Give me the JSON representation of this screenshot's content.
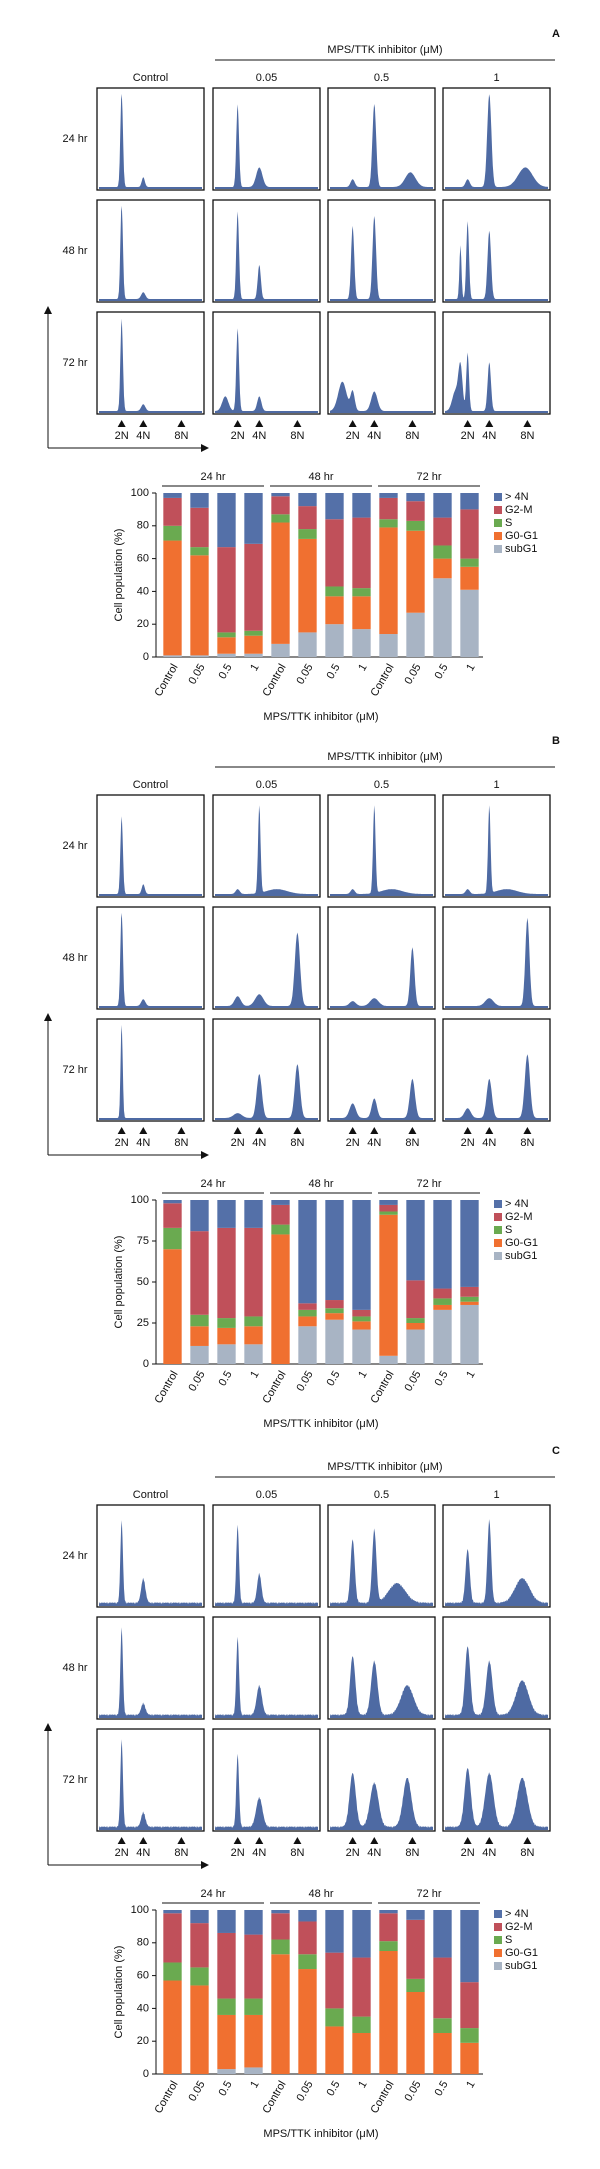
{
  "panels": [
    {
      "label": "A",
      "header": "MPS/TTK inhibitor (μM)",
      "columns": [
        "Control",
        "0.05",
        "0.5",
        "1"
      ],
      "rows": [
        "24 hr",
        "48 hr",
        "72 hr"
      ],
      "markers": [
        "2N",
        "4N",
        "8N"
      ]
    },
    {
      "label": "B",
      "header": "MPS/TTK inhibitor (μM)",
      "columns": [
        "Control",
        "0.05",
        "0.5",
        "1"
      ],
      "rows": [
        "24 hr",
        "48 hr",
        "72 hr"
      ],
      "markers": [
        "2N",
        "4N",
        "8N"
      ]
    },
    {
      "label": "C",
      "header": "MPS/TTK inhibitor (μM)",
      "columns": [
        "Control",
        "0.05",
        "0.5",
        "1"
      ],
      "rows": [
        "24 hr",
        "48 hr",
        "72 hr"
      ],
      "markers": [
        "2N",
        "4N",
        "8N"
      ]
    }
  ],
  "chart_data": [
    {
      "type": "stacked_bar",
      "groups": [
        "24 hr",
        "48 hr",
        "72 hr"
      ],
      "categories": [
        "Control",
        "0.05",
        "0.5",
        "1",
        "Control",
        "0.05",
        "0.5",
        "1",
        "Control",
        "0.05",
        "0.5",
        "1"
      ],
      "series": [
        {
          "name": "> 4N",
          "color": "#5470a8",
          "values": [
            3,
            9,
            33,
            31,
            2,
            8,
            16,
            15,
            3,
            5,
            15,
            10
          ]
        },
        {
          "name": "G2-M",
          "color": "#c0505a",
          "values": [
            17,
            24,
            52,
            53,
            11,
            14,
            41,
            43,
            13,
            12,
            17,
            30
          ]
        },
        {
          "name": "S",
          "color": "#6aaa50",
          "values": [
            9,
            5,
            3,
            3,
            5,
            6,
            6,
            5,
            5,
            6,
            8,
            5
          ]
        },
        {
          "name": "G0-G1",
          "color": "#f07030",
          "values": [
            70,
            61,
            10,
            11,
            74,
            57,
            17,
            20,
            65,
            50,
            12,
            14
          ]
        },
        {
          "name": "subG1",
          "color": "#a8b4c4",
          "values": [
            1,
            1,
            2,
            2,
            8,
            15,
            20,
            17,
            14,
            27,
            48,
            41
          ]
        }
      ],
      "ylim": [
        0,
        100
      ],
      "yticks": [
        0,
        20,
        40,
        60,
        80,
        100
      ],
      "ylabel": "Cell population (%)",
      "xlabel": "MPS/TTK inhibitor (μM)",
      "legend": "right"
    },
    {
      "type": "stacked_bar",
      "groups": [
        "24 hr",
        "48 hr",
        "72 hr"
      ],
      "categories": [
        "Control",
        "0.05",
        "0.5",
        "1",
        "Control",
        "0.05",
        "0.5",
        "1",
        "Control",
        "0.05",
        "0.5",
        "1"
      ],
      "series": [
        {
          "name": "> 4N",
          "color": "#5470a8",
          "values": [
            2,
            19,
            17,
            17,
            3,
            63,
            61,
            67,
            3,
            49,
            54,
            53
          ]
        },
        {
          "name": "G2-M",
          "color": "#c0505a",
          "values": [
            15,
            51,
            55,
            54,
            12,
            4,
            5,
            4,
            4,
            23,
            6,
            6
          ]
        },
        {
          "name": "S",
          "color": "#6aaa50",
          "values": [
            13,
            7,
            6,
            6,
            6,
            4,
            3,
            3,
            2,
            3,
            4,
            3
          ]
        },
        {
          "name": "G0-G1",
          "color": "#f07030",
          "values": [
            70,
            12,
            10,
            11,
            79,
            6,
            4,
            5,
            86,
            4,
            3,
            2
          ]
        },
        {
          "name": "subG1",
          "color": "#a8b4c4",
          "values": [
            0,
            11,
            12,
            12,
            0,
            23,
            27,
            21,
            5,
            21,
            33,
            36
          ]
        }
      ],
      "ylim": [
        0,
        100
      ],
      "yticks": [
        0,
        25,
        50,
        75,
        100
      ],
      "ylabel": "Cell population (%)",
      "xlabel": "MPS/TTK inhibitor (μM)",
      "legend": "right"
    },
    {
      "type": "stacked_bar",
      "groups": [
        "24 hr",
        "48 hr",
        "72 hr"
      ],
      "categories": [
        "Control",
        "0.05",
        "0.5",
        "1",
        "Control",
        "0.05",
        "0.5",
        "1",
        "Control",
        "0.05",
        "0.5",
        "1"
      ],
      "series": [
        {
          "name": "> 4N",
          "color": "#5470a8",
          "values": [
            2,
            8,
            14,
            15,
            2,
            7,
            26,
            29,
            2,
            6,
            29,
            44
          ]
        },
        {
          "name": "G2-M",
          "color": "#c0505a",
          "values": [
            30,
            27,
            40,
            39,
            16,
            20,
            34,
            36,
            17,
            36,
            37,
            28
          ]
        },
        {
          "name": "S",
          "color": "#6aaa50",
          "values": [
            11,
            11,
            10,
            10,
            9,
            9,
            11,
            10,
            6,
            8,
            9,
            9
          ]
        },
        {
          "name": "G0-G1",
          "color": "#f07030",
          "values": [
            57,
            54,
            33,
            32,
            73,
            64,
            29,
            25,
            75,
            50,
            25,
            19
          ]
        },
        {
          "name": "subG1",
          "color": "#a8b4c4",
          "values": [
            0,
            0,
            3,
            4,
            0,
            0,
            0,
            0,
            0,
            0,
            0,
            0
          ]
        }
      ],
      "ylim": [
        0,
        100
      ],
      "yticks": [
        0,
        20,
        40,
        60,
        80,
        100
      ],
      "ylabel": "Cell population (%)",
      "xlabel": "MPS/TTK inhibitor (μM)",
      "legend": "right"
    }
  ]
}
